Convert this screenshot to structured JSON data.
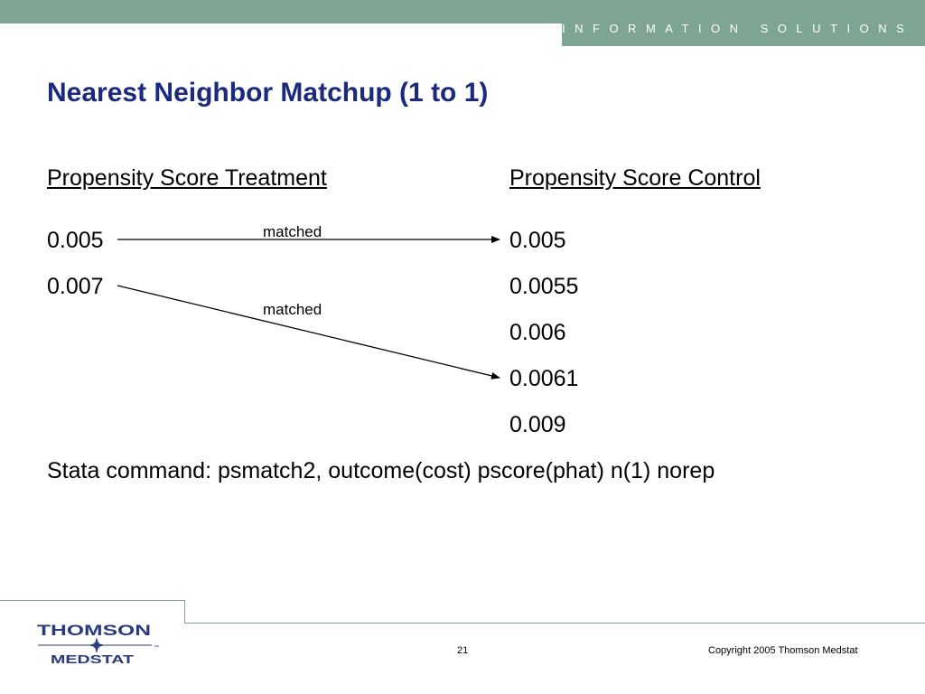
{
  "header": {
    "tagline": "INFORMATION SOLUTIONS",
    "band_color": "#7ea594"
  },
  "slide": {
    "title": "Nearest Neighbor Matchup (1 to 1)",
    "title_color": "#1b2a7c",
    "treatment_heading": "Propensity Score Treatment",
    "control_heading": "Propensity Score Control",
    "treatment_values": [
      "0.005",
      "0.007"
    ],
    "control_values": [
      "0.005",
      "0.0055",
      "0.006",
      "0.0061",
      "0.009"
    ],
    "match_labels": [
      "matched",
      "matched"
    ],
    "stata_command": "Stata command: psmatch2, outcome(cost) pscore(phat) n(1) norep"
  },
  "footer": {
    "logo": {
      "line1": "THOMSON",
      "line2": "MEDSTAT",
      "mark": "™",
      "icon": "star-compass-icon"
    },
    "page_number": "21",
    "copyright": "Copyright 2005 Thomson Medstat"
  }
}
